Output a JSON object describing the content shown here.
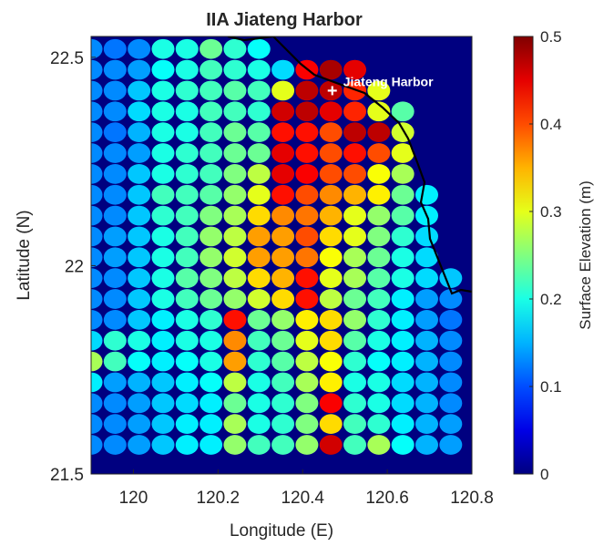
{
  "chart_data": {
    "type": "heatmap",
    "title": "IIA Jiateng Harbor",
    "xlabel": "Longitude (E)",
    "ylabel": "Latitude (N)",
    "xlim": [
      119.9,
      120.8
    ],
    "ylim": [
      21.5,
      22.55
    ],
    "xticks": [
      "120",
      "120.2",
      "120.4",
      "120.6",
      "120.8"
    ],
    "yticks": [
      "21.5",
      "22",
      "22.5"
    ],
    "colorbar": {
      "label": "Surface Elevation (m)",
      "range": [
        0,
        0.5
      ],
      "ticks": [
        "0",
        "0.1",
        "0.2",
        "0.3",
        "0.4",
        "0.5"
      ],
      "colormap": "jet"
    },
    "annotation": {
      "text": "Jiateng Harbor",
      "lon": 120.47,
      "lat": 22.42,
      "marker": "white-cross"
    },
    "land_color": "#000080",
    "grid": {
      "lon_start": 119.9,
      "lon_step": 0.05667,
      "lat_top": 22.52,
      "lat_step": -0.05,
      "values": [
        [
          0.13,
          0.12,
          0.13,
          0.2,
          0.2,
          0.24,
          0.21,
          0.19,
          null,
          null,
          null,
          null,
          null,
          null,
          null,
          null
        ],
        [
          0.13,
          0.13,
          0.14,
          0.19,
          0.2,
          0.22,
          0.21,
          0.2,
          0.17,
          0.44,
          0.48,
          0.45,
          null,
          null,
          null,
          null
        ],
        [
          0.13,
          0.13,
          0.16,
          0.2,
          0.21,
          0.22,
          0.23,
          0.22,
          0.3,
          0.47,
          0.47,
          0.42,
          0.3,
          null,
          null,
          null
        ],
        [
          0.13,
          0.13,
          0.17,
          0.2,
          0.2,
          0.22,
          0.22,
          0.21,
          0.46,
          0.47,
          0.45,
          0.42,
          0.3,
          0.23,
          null,
          null
        ],
        [
          0.13,
          0.12,
          0.15,
          0.2,
          0.2,
          0.22,
          0.24,
          0.23,
          0.43,
          0.43,
          0.4,
          0.47,
          0.47,
          0.29,
          null,
          null
        ],
        [
          0.13,
          0.13,
          0.14,
          0.2,
          0.21,
          0.22,
          0.24,
          0.24,
          0.45,
          0.43,
          0.4,
          0.43,
          0.4,
          0.3,
          null,
          null
        ],
        [
          0.13,
          0.13,
          0.16,
          0.2,
          0.21,
          0.22,
          0.25,
          0.28,
          0.45,
          0.44,
          0.4,
          0.4,
          0.31,
          0.27,
          null,
          null
        ],
        [
          0.13,
          0.13,
          0.16,
          0.22,
          0.22,
          0.23,
          0.26,
          0.3,
          0.43,
          0.4,
          0.37,
          0.35,
          0.32,
          0.24,
          0.18,
          null
        ],
        [
          0.13,
          0.13,
          0.16,
          0.21,
          0.22,
          0.25,
          0.27,
          0.33,
          0.37,
          0.38,
          0.35,
          0.3,
          0.26,
          0.23,
          0.18,
          null
        ],
        [
          0.13,
          0.14,
          0.16,
          0.2,
          0.22,
          0.26,
          0.28,
          0.36,
          0.36,
          0.4,
          0.33,
          0.3,
          0.25,
          0.21,
          0.17,
          null
        ],
        [
          0.13,
          0.14,
          0.16,
          0.2,
          0.22,
          0.26,
          0.29,
          0.36,
          0.36,
          0.38,
          0.31,
          0.27,
          0.24,
          0.2,
          0.17,
          null
        ],
        [
          0.13,
          0.13,
          0.16,
          0.2,
          0.23,
          0.25,
          0.28,
          0.33,
          0.35,
          0.43,
          0.3,
          0.27,
          0.23,
          0.2,
          0.17,
          0.16
        ],
        [
          0.13,
          0.13,
          0.16,
          0.2,
          0.22,
          0.24,
          0.26,
          0.29,
          0.33,
          0.43,
          0.28,
          0.24,
          0.22,
          0.18,
          0.14,
          0.13
        ],
        [
          0.13,
          0.13,
          0.16,
          0.18,
          0.2,
          0.21,
          0.43,
          0.24,
          0.26,
          0.32,
          0.33,
          0.26,
          0.21,
          0.18,
          0.14,
          0.12
        ],
        [
          0.17,
          0.21,
          0.2,
          0.18,
          0.2,
          0.2,
          0.37,
          0.22,
          0.24,
          0.3,
          0.33,
          0.23,
          0.2,
          0.18,
          0.15,
          0.13
        ],
        [
          0.27,
          0.22,
          0.19,
          0.18,
          0.19,
          0.2,
          0.36,
          0.21,
          0.23,
          0.28,
          0.31,
          0.21,
          0.19,
          0.18,
          0.15,
          0.13
        ],
        [
          0.18,
          0.14,
          0.15,
          0.16,
          0.18,
          0.19,
          0.28,
          0.2,
          0.22,
          0.27,
          0.32,
          0.2,
          0.2,
          0.17,
          0.15,
          0.13
        ],
        [
          0.13,
          0.13,
          0.14,
          0.16,
          0.17,
          0.18,
          0.24,
          0.2,
          0.21,
          0.25,
          0.44,
          0.21,
          0.2,
          0.17,
          0.15,
          0.13
        ],
        [
          0.13,
          0.13,
          0.14,
          0.16,
          0.18,
          0.18,
          0.27,
          0.2,
          0.21,
          0.25,
          0.33,
          0.22,
          0.21,
          0.18,
          0.15,
          0.14
        ],
        [
          0.13,
          0.13,
          0.14,
          0.16,
          0.18,
          0.18,
          0.26,
          0.22,
          0.22,
          0.26,
          0.46,
          0.22,
          0.27,
          0.19,
          0.15,
          0.14
        ]
      ]
    }
  }
}
